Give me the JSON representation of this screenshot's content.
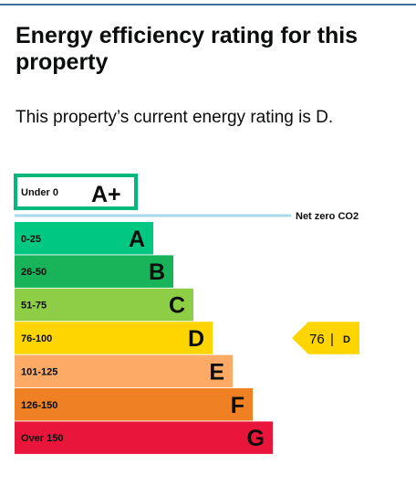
{
  "heading": "Energy efficiency rating for this property",
  "summary": "This property’s current energy rating is D.",
  "chart_data": {
    "type": "bar",
    "categories": [
      "Under 0",
      "0-25",
      "26-50",
      "51-75",
      "76-100",
      "101-125",
      "126-150",
      "Over 150"
    ],
    "ratings": [
      {
        "range": "Under 0",
        "letter": "A+",
        "color": "#ffffff",
        "border": "#00b87a"
      },
      {
        "range": "0-25",
        "letter": "A",
        "color": "#00c781"
      },
      {
        "range": "26-50",
        "letter": "B",
        "color": "#19b459"
      },
      {
        "range": "51-75",
        "letter": "C",
        "color": "#8dce46"
      },
      {
        "range": "76-100",
        "letter": "D",
        "color": "#ffd500"
      },
      {
        "range": "101-125",
        "letter": "E",
        "color": "#fcaa65"
      },
      {
        "range": "126-150",
        "letter": "F",
        "color": "#ef8023"
      },
      {
        "range": "Over 150",
        "letter": "G",
        "color": "#e9153b"
      }
    ],
    "net_zero_label": "Net zero CO2",
    "net_zero_color": "#a8d8ea",
    "current": {
      "value": "76",
      "separator": "|",
      "letter": "D",
      "color": "#ffd500"
    }
  }
}
